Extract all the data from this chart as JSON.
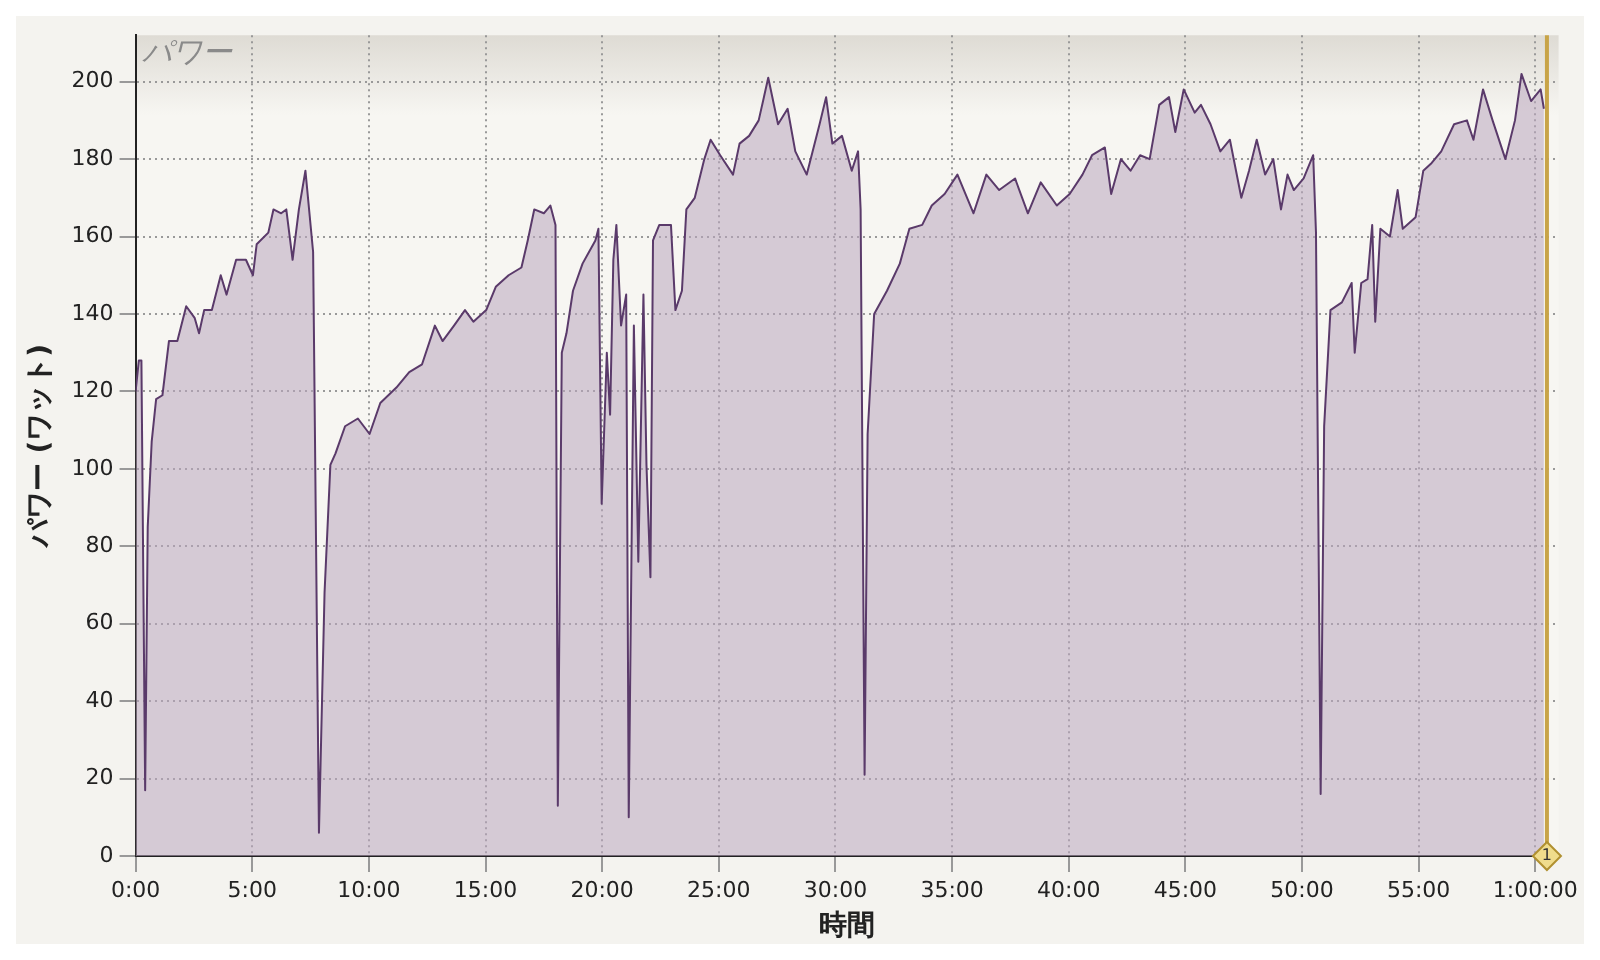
{
  "chart_data": {
    "type": "area",
    "title": "パワー",
    "xlabel": "時間",
    "ylabel": "パワー (ワット)",
    "x": [
      0,
      0.14,
      0.25,
      0.41,
      0.52,
      0.69,
      0.88,
      1.15,
      1.43,
      1.79,
      2.17,
      2.53,
      2.72,
      2.94,
      3.27,
      3.65,
      3.9,
      4.31,
      4.73,
      5.03,
      5.19,
      5.69,
      5.91,
      6.24,
      6.46,
      6.73,
      7.0,
      7.28,
      7.61,
      7.86,
      8.1,
      8.35,
      8.57,
      8.98,
      9.53,
      10.03,
      10.49,
      11.18,
      11.73,
      12.28,
      12.83,
      13.16,
      13.65,
      14.12,
      14.48,
      15.03,
      15.44,
      15.99,
      16.54,
      16.81,
      17.09,
      17.5,
      17.78,
      18.0,
      18.1,
      18.27,
      18.47,
      18.75,
      19.16,
      19.71,
      19.84,
      19.98,
      20.2,
      20.34,
      20.48,
      20.61,
      20.81,
      21.03,
      21.14,
      21.36,
      21.55,
      21.77,
      21.9,
      22.07,
      22.18,
      22.45,
      22.95,
      23.14,
      23.42,
      23.61,
      23.97,
      24.38,
      24.65,
      25.06,
      25.61,
      25.89,
      26.3,
      26.71,
      27.12,
      27.54,
      27.95,
      28.28,
      28.77,
      29.32,
      29.6,
      29.87,
      30.28,
      30.7,
      30.97,
      31.08,
      31.25,
      31.38,
      31.66,
      32.21,
      32.76,
      33.17,
      33.72,
      34.13,
      34.68,
      35.23,
      35.92,
      36.47,
      37.02,
      37.7,
      38.25,
      38.8,
      39.49,
      40.04,
      40.59,
      41.0,
      41.55,
      41.82,
      42.24,
      42.65,
      43.06,
      43.47,
      43.88,
      44.3,
      44.57,
      44.93,
      45.4,
      45.67,
      46.08,
      46.5,
      46.91,
      47.4,
      47.73,
      48.06,
      48.42,
      48.77,
      49.1,
      49.38,
      49.65,
      50.07,
      50.48,
      50.6,
      50.8,
      50.95,
      51.22,
      51.71,
      52.13,
      52.26,
      52.54,
      52.81,
      53.01,
      53.14,
      53.36,
      53.77,
      54.1,
      54.32,
      54.87,
      55.2,
      55.56,
      55.97,
      56.52,
      57.07,
      57.35,
      57.76,
      58.17,
      58.72,
      59.13,
      59.41,
      59.82,
      60.23,
      60.37
    ],
    "series": [
      {
        "color": "#5a3a6a",
        "values": [
          120,
          128,
          128,
          17,
          85,
          107,
          118,
          119,
          133,
          133,
          142,
          139,
          135,
          141,
          141,
          150,
          145,
          154,
          154,
          150,
          158,
          161,
          167,
          166,
          167,
          154,
          167,
          177,
          156,
          6,
          68,
          101,
          104,
          111,
          113,
          109,
          117,
          121,
          125,
          127,
          137,
          133,
          137,
          141,
          138,
          141,
          147,
          150,
          152,
          159,
          167,
          166,
          168,
          163,
          13,
          130,
          135,
          146,
          153,
          159,
          162,
          91,
          130,
          114,
          154,
          163,
          137,
          145,
          10,
          137,
          76,
          145,
          101,
          72,
          159,
          163,
          163,
          141,
          146,
          167,
          170,
          180,
          185,
          181,
          176,
          184,
          186,
          190,
          201,
          189,
          193,
          182,
          176,
          189,
          196,
          184,
          186,
          177,
          182,
          167,
          21,
          109,
          140,
          146,
          153,
          162,
          163,
          168,
          171,
          176,
          166,
          176,
          172,
          175,
          166,
          174,
          168,
          171,
          176,
          181,
          183,
          171,
          180,
          177,
          181,
          180,
          194,
          196,
          187,
          198,
          192,
          194,
          189,
          182,
          185,
          170,
          177,
          185,
          176,
          180,
          167,
          176,
          172,
          175,
          181,
          161,
          16,
          111,
          141,
          143,
          148,
          130,
          148,
          149,
          163,
          138,
          162,
          160,
          172,
          162,
          165,
          177,
          179,
          182,
          189,
          190,
          185,
          198,
          190,
          180,
          190,
          202,
          195,
          198,
          193
        ]
      }
    ],
    "xlim": [
      0,
      61
    ],
    "ylim": [
      0,
      212
    ],
    "xticks": [
      {
        "value": 0,
        "label": "0:00"
      },
      {
        "value": 5,
        "label": "5:00"
      },
      {
        "value": 10,
        "label": "10:00"
      },
      {
        "value": 15,
        "label": "15:00"
      },
      {
        "value": 20,
        "label": "20:00"
      },
      {
        "value": 25,
        "label": "25:00"
      },
      {
        "value": 30,
        "label": "30:00"
      },
      {
        "value": 35,
        "label": "35:00"
      },
      {
        "value": 40,
        "label": "40:00"
      },
      {
        "value": 45,
        "label": "45:00"
      },
      {
        "value": 50,
        "label": "50:00"
      },
      {
        "value": 55,
        "label": "55:00"
      },
      {
        "value": 60,
        "label": "1:00:00"
      }
    ],
    "yticks": [
      0,
      20,
      40,
      60,
      80,
      100,
      120,
      140,
      160,
      180,
      200
    ],
    "grid": true,
    "legend": false,
    "marker": "none",
    "line_style": "solid",
    "annotations": [
      "1"
    ],
    "ref_lines": [
      {
        "axis": "x",
        "value": 60.5,
        "color": "#c8a448"
      }
    ]
  }
}
